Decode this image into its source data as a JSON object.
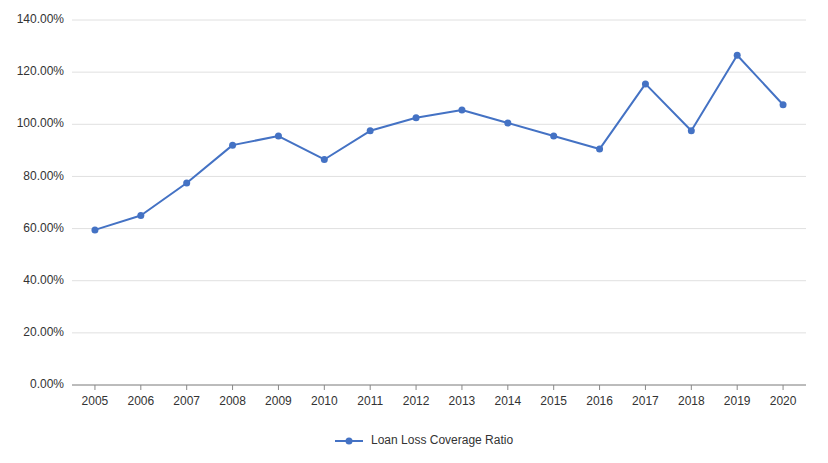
{
  "chart_data": {
    "type": "line",
    "x": [
      2005,
      2006,
      2007,
      2008,
      2009,
      2010,
      2011,
      2012,
      2013,
      2014,
      2015,
      2016,
      2017,
      2018,
      2019,
      2020
    ],
    "series": [
      {
        "name": "Loan Loss Coverage Ratio",
        "color": "#4472C4",
        "marker": "circle",
        "values": [
          0.595,
          0.65,
          0.775,
          0.92,
          0.955,
          0.865,
          0.975,
          1.025,
          1.055,
          1.005,
          0.955,
          0.905,
          1.155,
          0.975,
          1.265,
          1.075
        ]
      }
    ],
    "xlim": [
      2004.5,
      2020.5
    ],
    "xticks": [
      2005,
      2006,
      2007,
      2008,
      2009,
      2010,
      2011,
      2012,
      2013,
      2014,
      2015,
      2016,
      2017,
      2018,
      2019,
      2020
    ],
    "ylim": [
      0.0,
      1.4
    ],
    "yticks": [
      {
        "value": 0.0,
        "label": "0.00%"
      },
      {
        "value": 0.2,
        "label": "20.00%"
      },
      {
        "value": 0.4,
        "label": "40.00%"
      },
      {
        "value": 0.6,
        "label": "60.00%"
      },
      {
        "value": 0.8,
        "label": "80.00%"
      },
      {
        "value": 1.0,
        "label": "100.00%"
      },
      {
        "value": 1.2,
        "label": "120.00%"
      },
      {
        "value": 1.4,
        "label": "140.00%"
      }
    ],
    "grid": true,
    "legend": "bottom"
  }
}
